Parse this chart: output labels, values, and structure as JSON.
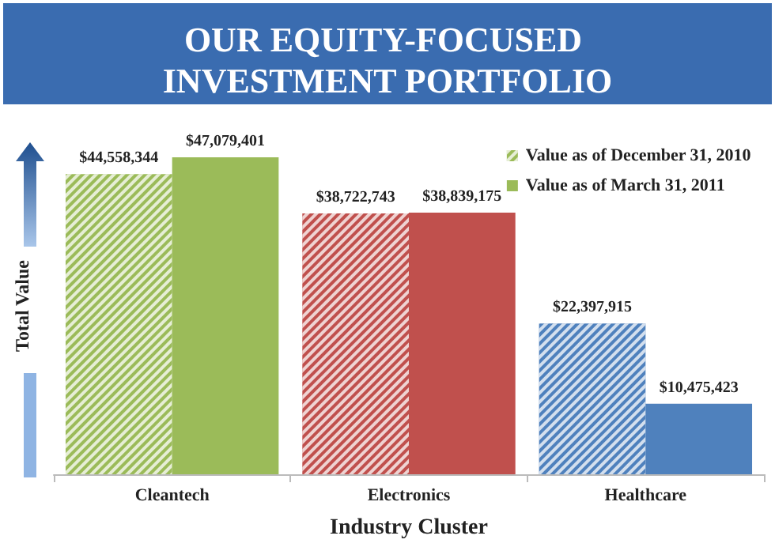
{
  "chart_data": {
    "type": "bar",
    "title": "OUR EQUITY-FOCUSED INVESTMENT PORTFOLIO",
    "xlabel": "Industry Cluster",
    "ylabel": "Total Value",
    "categories": [
      "Cleantech",
      "Electronics",
      "Healthcare"
    ],
    "series": [
      {
        "name": "Value as of December 31, 2010",
        "color": "#9bbb59",
        "colors": [
          "#9bbb59",
          "#c0504d",
          "#4f81bd"
        ],
        "values": [
          44558344,
          38722743,
          22397915
        ],
        "value_labels": [
          "$44,558,344",
          "$38,722,743",
          "$22,397,915"
        ]
      },
      {
        "name": "Value as of March 31, 2011",
        "color": "#9bbb59",
        "colors": [
          "#9bbb59",
          "#c0504d",
          "#4f81bd"
        ],
        "values": [
          47079401,
          38839175,
          10475423
        ],
        "value_labels": [
          "$47,079,401",
          "$38,839,175",
          "$10,475,423"
        ]
      }
    ],
    "legend": "top right",
    "grid": false
  }
}
